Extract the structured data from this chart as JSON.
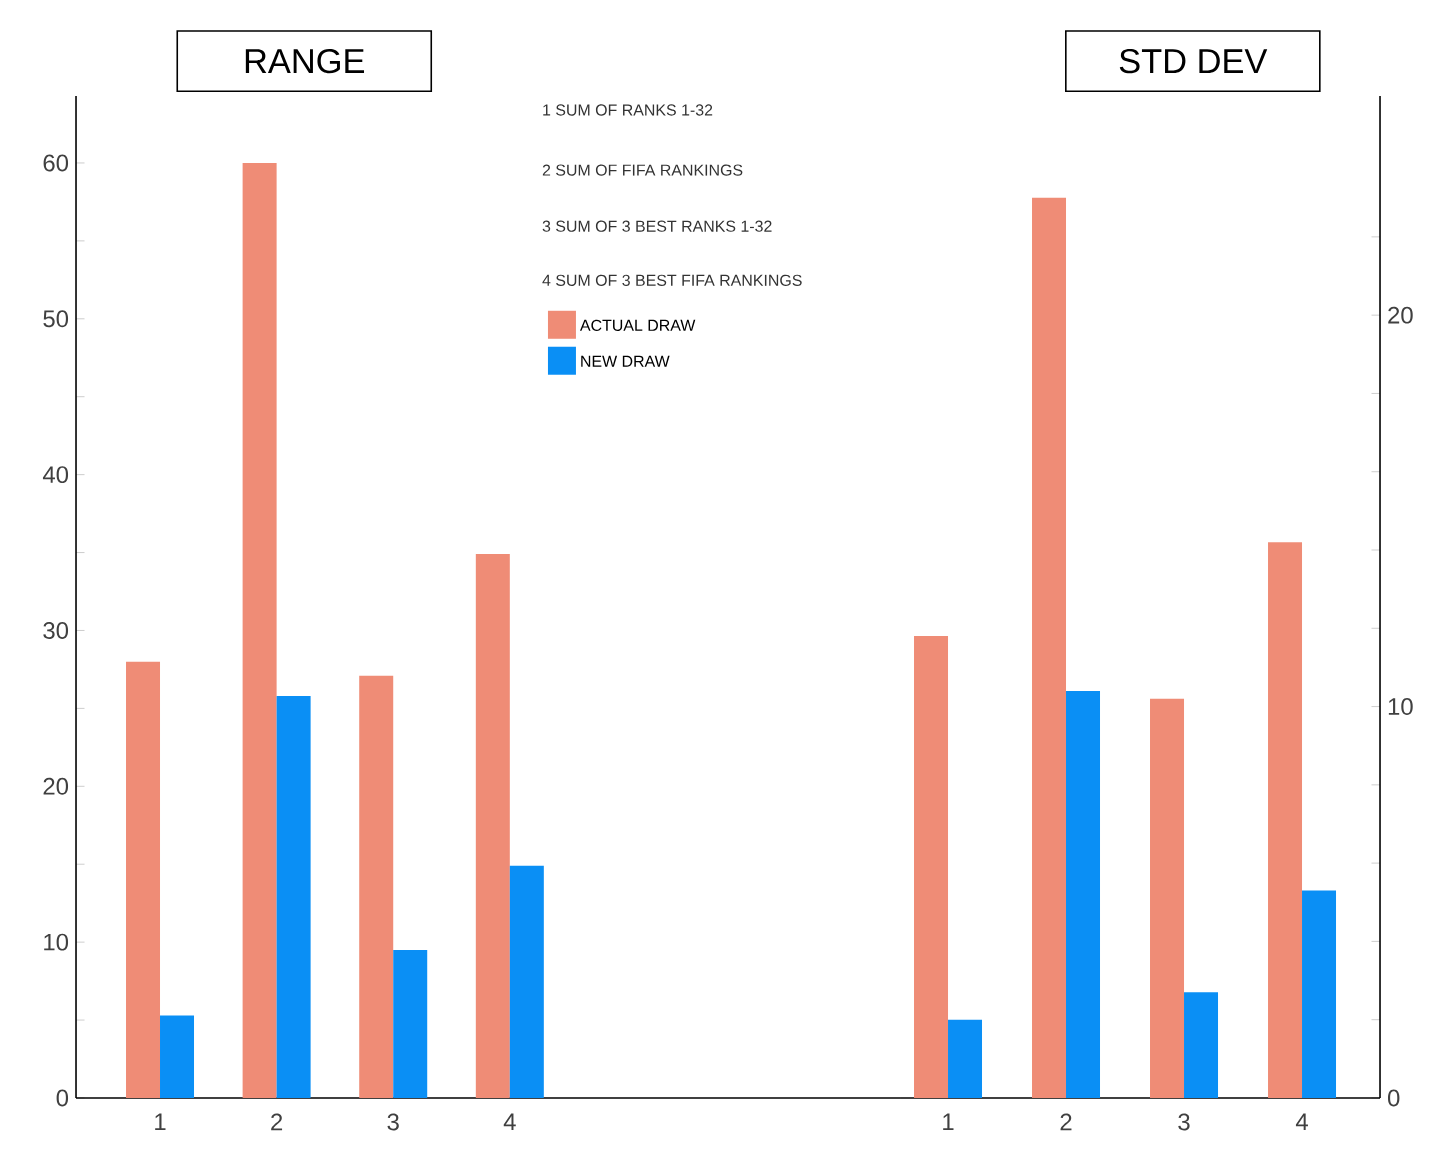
{
  "chart_data": [
    {
      "type": "bar",
      "title": "RANGE",
      "categories": [
        "1",
        "2",
        "3",
        "4"
      ],
      "series": [
        {
          "name": "ACTUAL DRAW",
          "color": "#ef8c76",
          "values": [
            28.0,
            60.0,
            27.1,
            34.9
          ]
        },
        {
          "name": "NEW DRAW",
          "color": "#0a8ff5",
          "values": [
            5.3,
            25.8,
            9.5,
            14.9
          ]
        }
      ],
      "ylim": [
        0,
        64.3
      ],
      "yticks": [
        0,
        {
          "value": 5,
          "label": null
        },
        10,
        {
          "value": 15,
          "label": null
        },
        20,
        {
          "value": 25,
          "label": null
        },
        30,
        {
          "value": 35,
          "label": null
        },
        40,
        {
          "value": 45,
          "label": null
        },
        50,
        {
          "value": 55,
          "label": null
        },
        60
      ],
      "legend": "top right",
      "annotations": [
        "1   SUM OF RANKS 1-32",
        "2   SUM OF FIFA RANKINGS",
        "3   SUM OF 3 BEST RANKS 1-32",
        "4   SUM OF 3 BEST FIFA RANKINGS"
      ]
    },
    {
      "type": "bar",
      "title": "STD DEV",
      "categories": [
        "1",
        "2",
        "3",
        "4"
      ],
      "series": [
        {
          "color": "#ef8c76",
          "values": [
            11.8,
            23.0,
            10.2,
            14.2
          ]
        },
        {
          "color": "#0a8ff5",
          "values": [
            2.0,
            10.4,
            2.7,
            5.3
          ]
        }
      ],
      "ylim": [
        0,
        25.6
      ],
      "yticks": [
        0,
        {
          "value": 2,
          "label": null
        },
        {
          "value": 4,
          "label": null
        },
        {
          "value": 6,
          "label": null
        },
        {
          "value": 8,
          "label": null
        },
        10,
        {
          "value": 12,
          "label": null
        },
        {
          "value": 14,
          "label": null
        },
        {
          "value": 16,
          "label": null
        },
        {
          "value": 18,
          "label": null
        },
        20,
        {
          "value": 22,
          "label": null
        }
      ]
    }
  ]
}
